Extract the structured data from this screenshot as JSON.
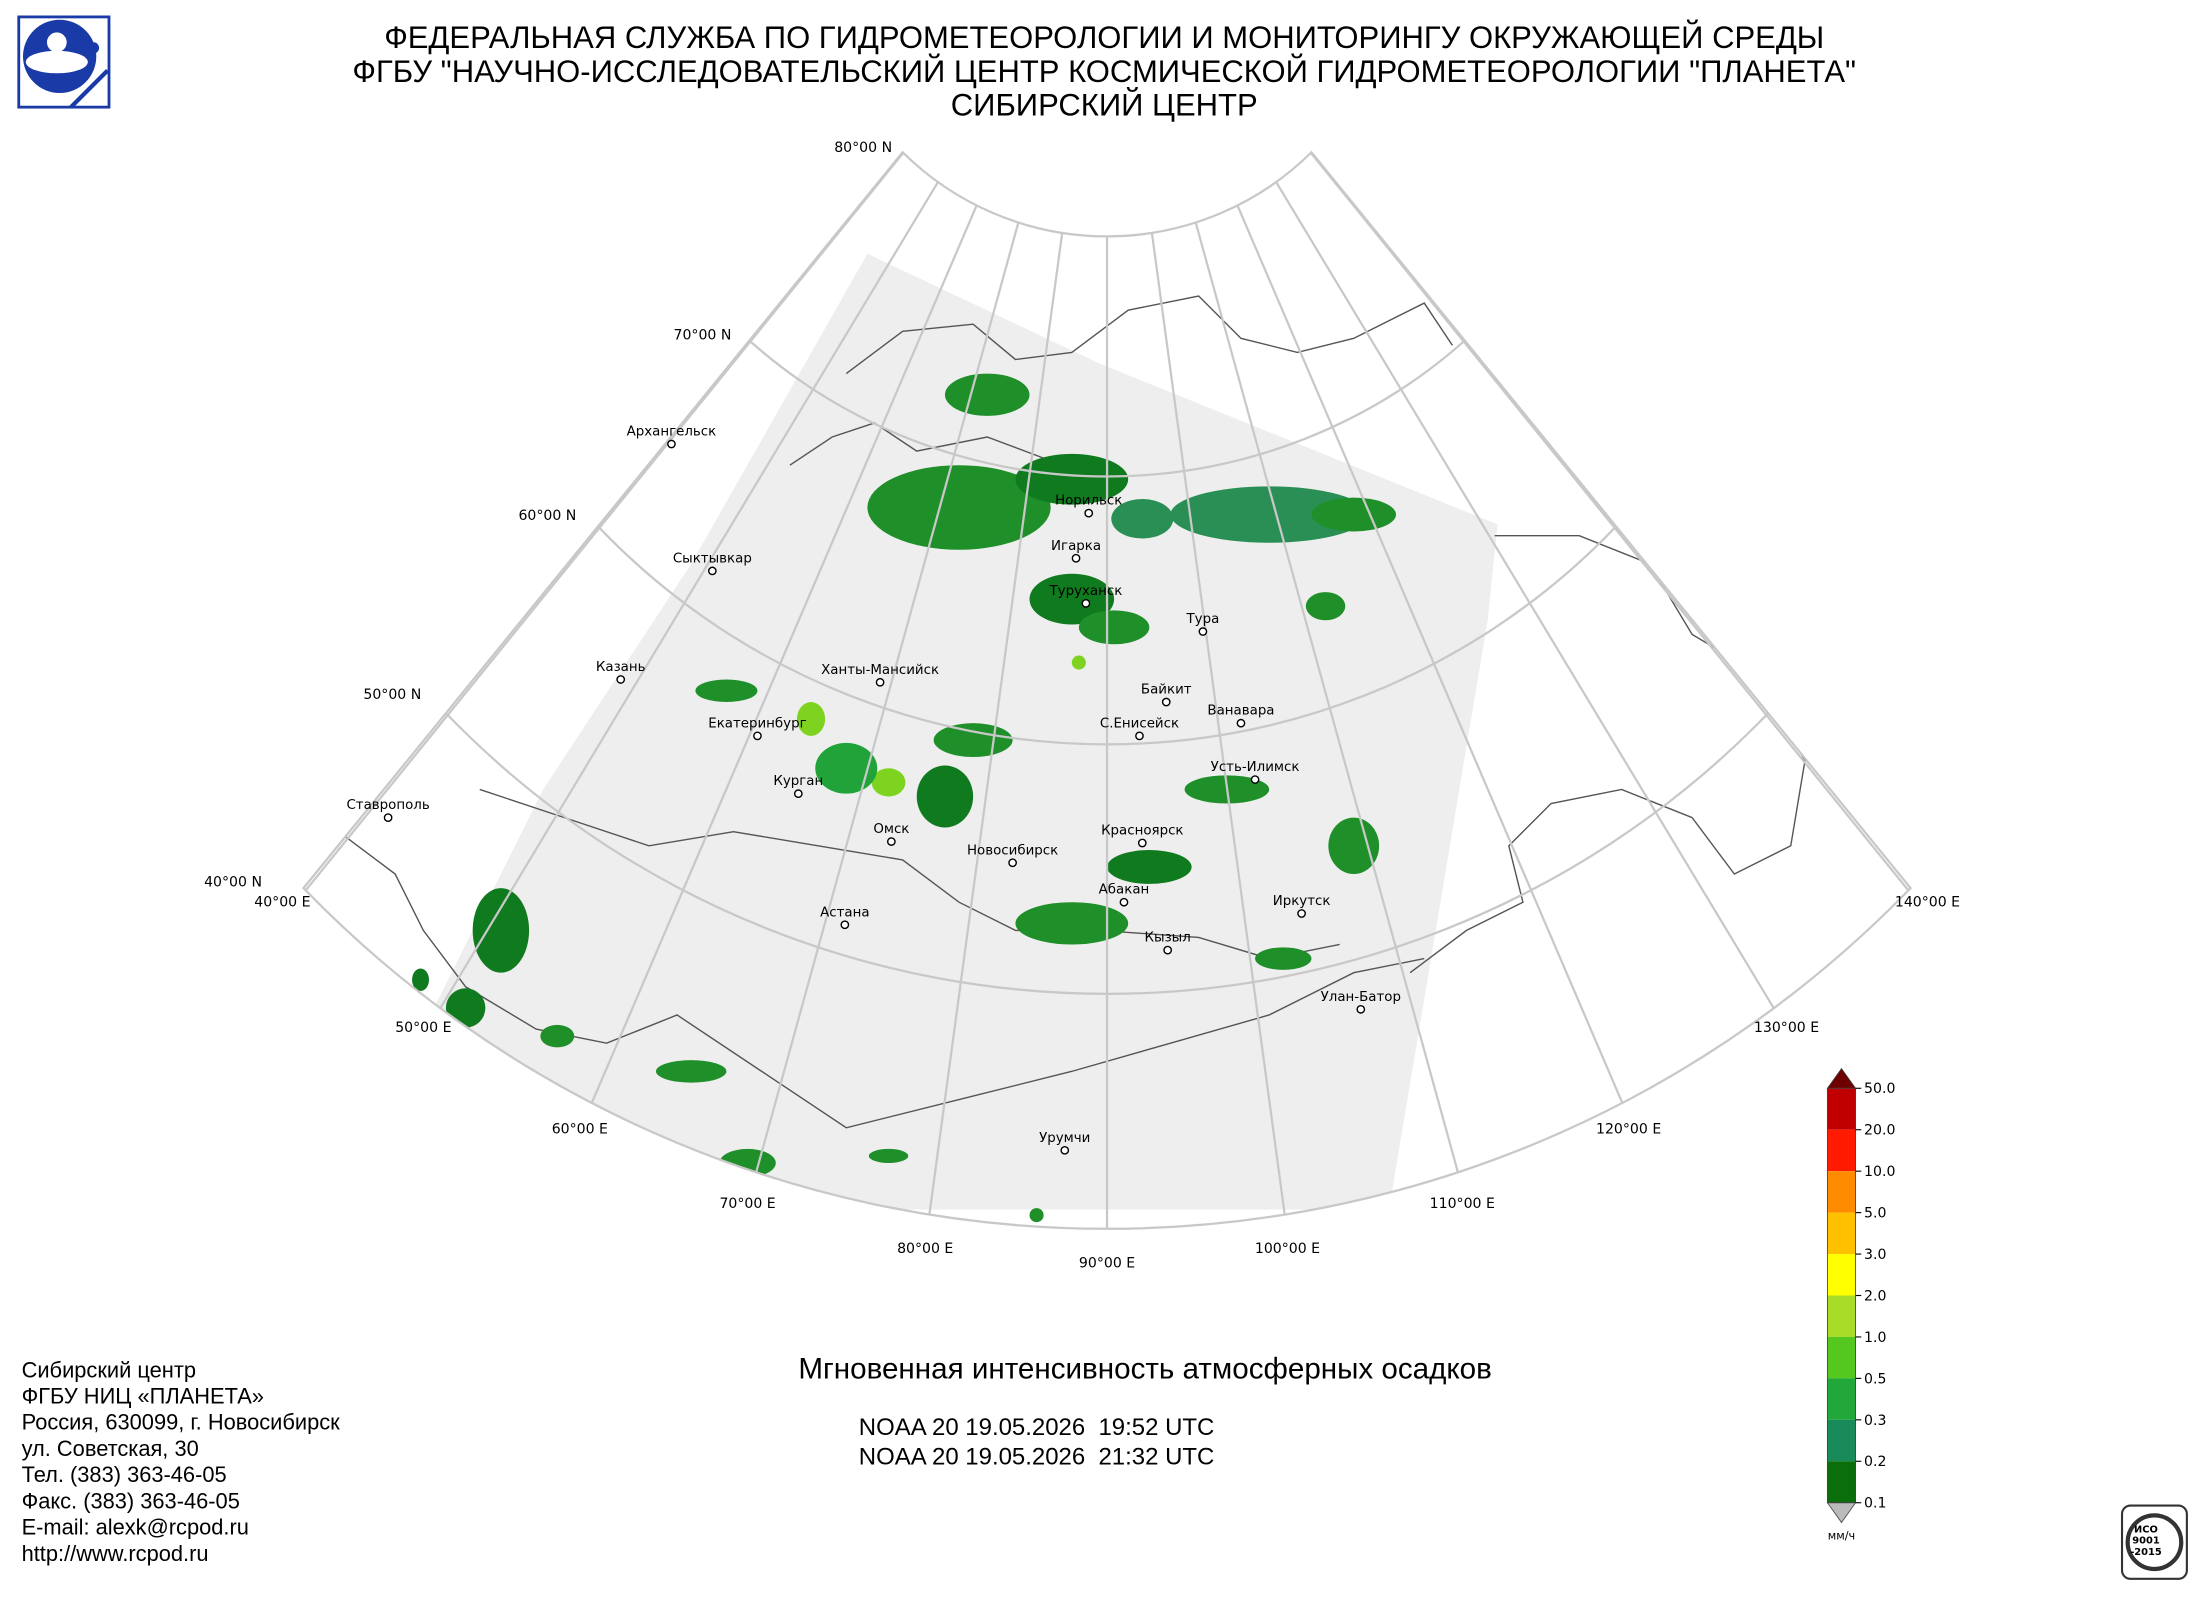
{
  "header": {
    "lines": [
      "ФЕДЕРАЛЬНАЯ СЛУЖБА ПО ГИДРОМЕТЕОРОЛОГИИ И МОНИТОРИНГУ ОКРУЖАЮЩЕЙ СРЕДЫ",
      "ФГБУ \"НАУЧНО-ИССЛЕДОВАТЕЛЬСКИЙ ЦЕНТР КОСМИЧЕСКОЙ ГИДРОМЕТЕОРОЛОГИИ \"ПЛАНЕТА\"",
      "СИБИРСКИЙ ЦЕНТР"
    ]
  },
  "map": {
    "parallel_labels": [
      "80°00 N",
      "70°00 N",
      "60°00 N",
      "50°00 N",
      "40°00 N"
    ],
    "meridian_labels": [
      "40°00 E",
      "50°00 E",
      "60°00 E",
      "70°00 E",
      "80°00 E",
      "90°00 E",
      "100°00 E",
      "110°00 E",
      "120°00 E",
      "130°00 E",
      "140°00 E"
    ],
    "cities": [
      "Архангельск",
      "Сыктывкар",
      "Казань",
      "Екатеринбург",
      "Курган",
      "Ханты-Мансийск",
      "Омск",
      "Новосибирск",
      "Астана",
      "Ставрополь",
      "Норильск",
      "Игарка",
      "Туруханск",
      "Тура",
      "Байкит",
      "Ванавара",
      "С.Енисейск",
      "Усть-Илимск",
      "Красноярск",
      "Абакан",
      "Кызыл",
      "Иркутск",
      "Улан-Батор",
      "Урумчи"
    ]
  },
  "legend": {
    "ticks": [
      "50.0",
      "20.0",
      "10.0",
      "5.0",
      "3.0",
      "2.0",
      "1.0",
      "0.5",
      "0.3",
      "0.2",
      "0.1"
    ],
    "unit": "мм/ч"
  },
  "caption": {
    "title": "Мгновенная интенсивность атмосферных осадков",
    "passes": [
      "NOAA 20 19.05.2026  19:52 UTC",
      "NOAA 20 19.05.2026  21:32 UTC"
    ]
  },
  "contacts": [
    "Сибирский центр",
    "ФГБУ НИЦ «ПЛАНЕТА»",
    "Россия, 630099, г. Новосибирск",
    "ул. Советская, 30",
    "Тел. (383) 363-46-05",
    "Факс. (383) 363-46-05",
    "E-mail: alexk@rcpod.ru",
    "http://www.rcpod.ru"
  ],
  "certificate": {
    "lines": [
      "ИСО",
      "9001",
      "-2015"
    ]
  }
}
